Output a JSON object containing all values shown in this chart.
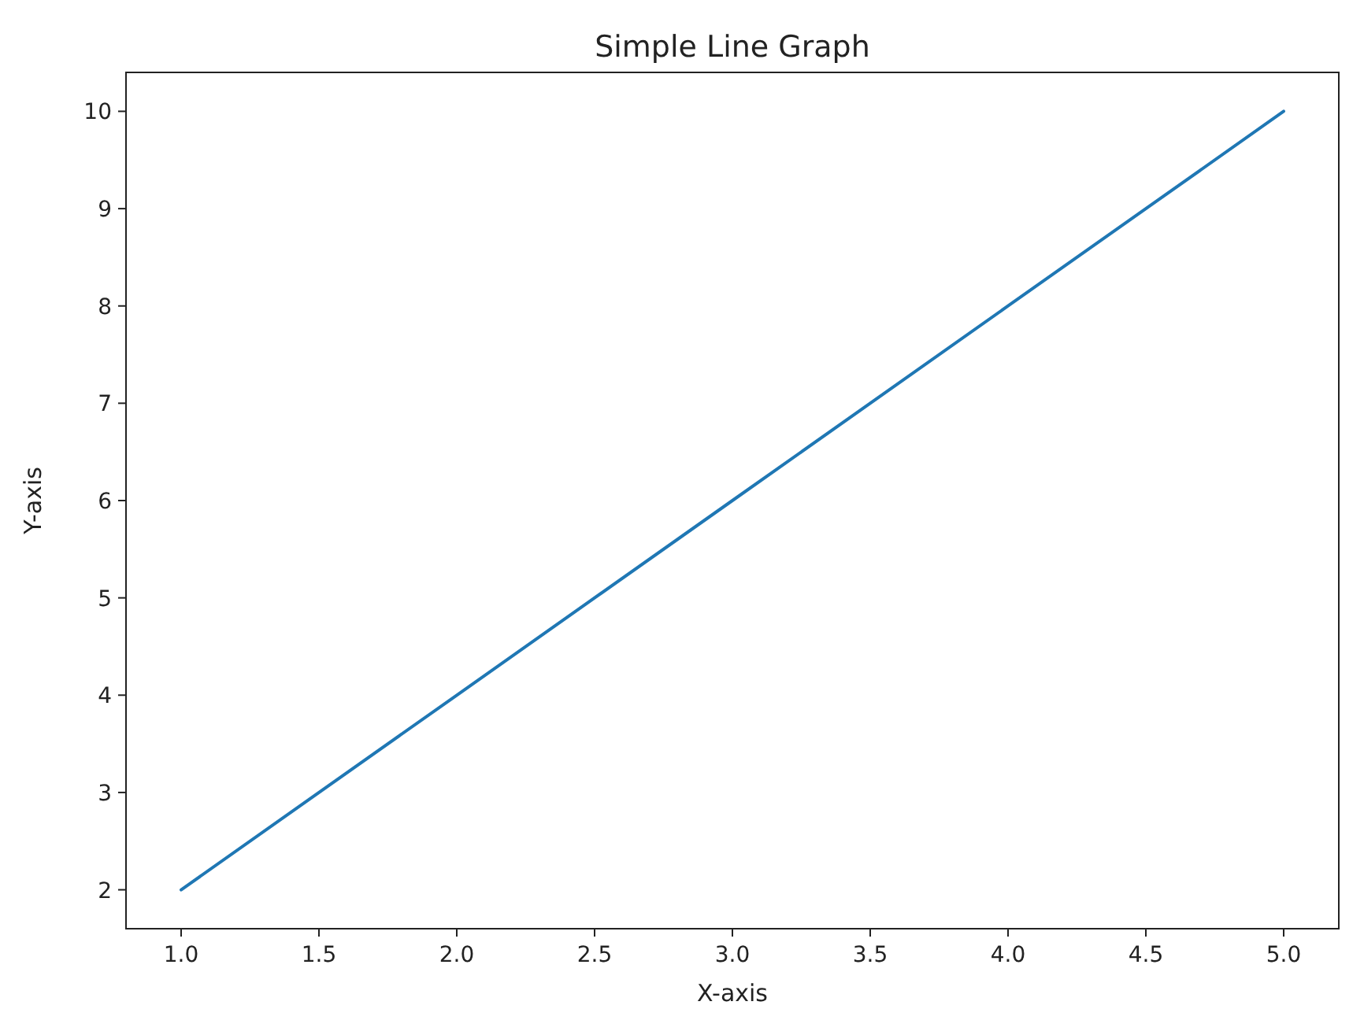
{
  "chart_data": {
    "type": "line",
    "title": "Simple Line Graph",
    "xlabel": "X-axis",
    "ylabel": "Y-axis",
    "x": [
      1,
      2,
      3,
      4,
      5
    ],
    "series": [
      {
        "color": "#1f77b4",
        "values": [
          2,
          4,
          6,
          8,
          10
        ]
      }
    ],
    "xlim": [
      0.8,
      5.2
    ],
    "ylim": [
      1.6,
      10.4
    ],
    "xticks": [
      {
        "value": 1,
        "label": "1.0"
      },
      {
        "value": 1.5,
        "label": "1.5"
      },
      {
        "value": 2,
        "label": "2.0"
      },
      {
        "value": 2.5,
        "label": "2.5"
      },
      {
        "value": 3,
        "label": "3.0"
      },
      {
        "value": 3.5,
        "label": "3.5"
      },
      {
        "value": 4,
        "label": "4.0"
      },
      {
        "value": 4.5,
        "label": "4.5"
      },
      {
        "value": 5,
        "label": "5.0"
      }
    ],
    "yticks": [
      2,
      3,
      4,
      5,
      6,
      7,
      8,
      9,
      10
    ]
  }
}
